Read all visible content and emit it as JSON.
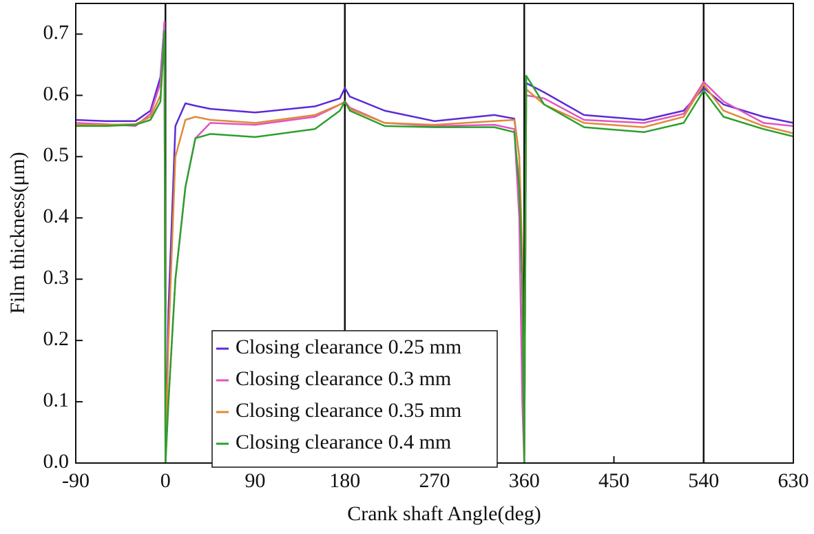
{
  "chart_data": {
    "type": "line",
    "xlabel": "Crank shaft Angle(deg)",
    "ylabel": "Film thickness(μm)",
    "x": [
      -90,
      -60,
      -30,
      -15,
      -5,
      -1,
      0,
      3,
      10,
      20,
      30,
      45,
      90,
      150,
      175,
      180,
      185,
      220,
      270,
      330,
      350,
      355,
      358,
      360,
      362,
      380,
      420,
      480,
      520,
      540,
      560,
      600,
      630
    ],
    "series": [
      {
        "name": "Closing clearance 0.25 mm",
        "color": "#5b2bd6",
        "values": [
          0.56,
          0.558,
          0.558,
          0.575,
          0.63,
          0.72,
          0.0,
          0.25,
          0.55,
          0.587,
          0.583,
          0.578,
          0.572,
          0.582,
          0.595,
          0.612,
          0.598,
          0.575,
          0.558,
          0.568,
          0.562,
          0.5,
          0.3,
          0.0,
          0.62,
          0.605,
          0.568,
          0.56,
          0.575,
          0.612,
          0.585,
          0.565,
          0.555
        ]
      },
      {
        "name": "Closing clearance 0.3 mm",
        "color": "#e055c0",
        "values": [
          0.555,
          0.553,
          0.55,
          0.57,
          0.62,
          0.72,
          0.0,
          0.1,
          0.3,
          0.45,
          0.53,
          0.555,
          0.552,
          0.565,
          0.585,
          0.59,
          0.58,
          0.555,
          0.55,
          0.552,
          0.545,
          0.4,
          0.1,
          0.0,
          0.6,
          0.595,
          0.56,
          0.555,
          0.57,
          0.622,
          0.59,
          0.555,
          0.55
        ]
      },
      {
        "name": "Closing clearance 0.35 mm",
        "color": "#e08a3a",
        "values": [
          0.552,
          0.552,
          0.553,
          0.565,
          0.6,
          0.7,
          0.0,
          0.2,
          0.5,
          0.56,
          0.565,
          0.56,
          0.555,
          0.568,
          0.585,
          0.588,
          0.578,
          0.555,
          0.552,
          0.558,
          0.56,
          0.5,
          0.35,
          0.0,
          0.61,
          0.585,
          0.555,
          0.548,
          0.565,
          0.618,
          0.575,
          0.55,
          0.538
        ]
      },
      {
        "name": "Closing clearance 0.4 mm",
        "color": "#2ca02c",
        "values": [
          0.55,
          0.55,
          0.552,
          0.56,
          0.59,
          0.705,
          0.0,
          0.1,
          0.3,
          0.45,
          0.53,
          0.537,
          0.532,
          0.545,
          0.575,
          0.59,
          0.575,
          0.55,
          0.548,
          0.548,
          0.54,
          0.45,
          0.3,
          0.0,
          0.632,
          0.585,
          0.548,
          0.54,
          0.555,
          0.608,
          0.565,
          0.545,
          0.533
        ]
      }
    ],
    "vlines": [
      0,
      180,
      360,
      540
    ],
    "xlim": [
      -90,
      630
    ],
    "xticks": [
      -90,
      0,
      90,
      180,
      270,
      360,
      450,
      540,
      630
    ],
    "ylim": [
      0,
      0.75
    ],
    "yticks": [
      {
        "value": 0,
        "label": "0.0"
      },
      0.1,
      0.2,
      0.3,
      0.4,
      0.5,
      0.6,
      0.7
    ],
    "legend": "lower center"
  }
}
